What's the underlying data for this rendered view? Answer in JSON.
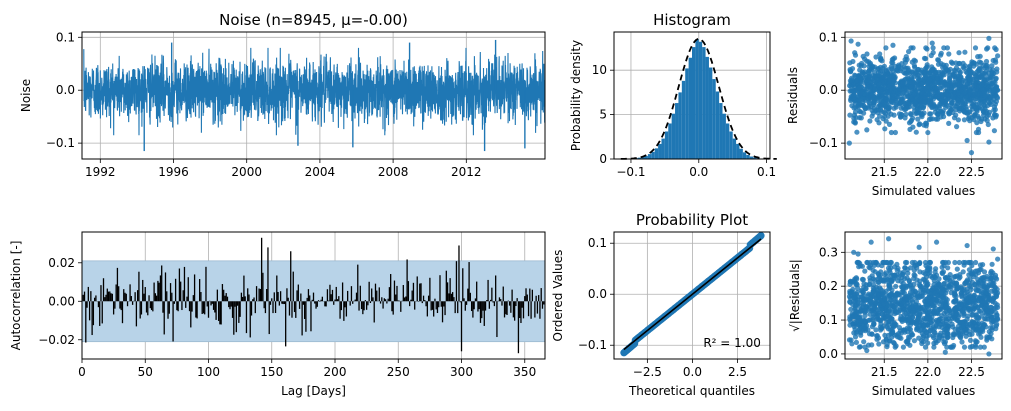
{
  "colors": {
    "series": "#1f77b4",
    "band": "#b8d3e8",
    "grid": "#b0b0b0",
    "black": "#000000"
  },
  "chart_data": [
    {
      "id": "noise",
      "type": "line",
      "title": "Noise (n=8945, μ=-0.00)",
      "xlabel": "",
      "ylabel": "Noise",
      "xlim": [
        1991.0,
        2016.3
      ],
      "ylim": [
        -0.13,
        0.11
      ],
      "xticks": [
        1992,
        1996,
        2000,
        2004,
        2008,
        2012
      ],
      "xticklabels": [
        "1992",
        "1996",
        "2000",
        "2004",
        "2008",
        "2012"
      ],
      "yticks": [
        -0.1,
        0.0,
        0.1
      ],
      "yticklabels": [
        "−0.1",
        "0.0",
        "0.1"
      ],
      "n": 8945,
      "mean": -0.0,
      "typical_range": [
        -0.075,
        0.075
      ],
      "extremes": [
        {
          "x": 1994.4,
          "y": -0.115
        },
        {
          "x": 2013.0,
          "y": -0.115
        },
        {
          "x": 2015.2,
          "y": -0.11
        },
        {
          "x": 2002.8,
          "y": -0.105
        },
        {
          "x": 2005.8,
          "y": -0.108
        },
        {
          "x": 1995.9,
          "y": 0.09
        },
        {
          "x": 2008.9,
          "y": 0.09
        },
        {
          "x": 2013.6,
          "y": 0.095
        }
      ],
      "grid": true
    },
    {
      "id": "histogram",
      "type": "bar",
      "title": "Histogram",
      "xlabel": "",
      "ylabel": "Probability density",
      "xlim": [
        -0.125,
        0.105
      ],
      "ylim": [
        0,
        14.3
      ],
      "xticks": [
        -0.1,
        0.0,
        0.1
      ],
      "xticklabels": [
        "−0.1",
        "0.0",
        "0.1"
      ],
      "yticks": [
        0,
        5,
        10
      ],
      "yticklabels": [
        "0",
        "5",
        "10"
      ],
      "bins": [
        -0.1125,
        -0.1075,
        -0.1025,
        -0.0975,
        -0.0925,
        -0.0875,
        -0.0825,
        -0.0775,
        -0.0725,
        -0.0675,
        -0.0625,
        -0.0575,
        -0.0525,
        -0.0475,
        -0.0425,
        -0.0375,
        -0.0325,
        -0.0275,
        -0.0225,
        -0.0175,
        -0.0125,
        -0.0075,
        -0.0025,
        0.0025,
        0.0075,
        0.0125,
        0.0175,
        0.0225,
        0.0275,
        0.0325,
        0.0375,
        0.0425,
        0.0475,
        0.0525,
        0.0575,
        0.0625,
        0.0675,
        0.0725,
        0.0775,
        0.0825,
        0.0875,
        0.0925,
        0.0975
      ],
      "bin_width": 0.005,
      "density": [
        0.02,
        0.03,
        0.04,
        0.07,
        0.1,
        0.15,
        0.22,
        0.35,
        0.55,
        0.8,
        1.2,
        1.7,
        2.3,
        3.1,
        4.0,
        5.1,
        6.3,
        7.5,
        8.8,
        10.2,
        11.4,
        12.6,
        13.5,
        13.2,
        12.6,
        11.5,
        10.3,
        9.0,
        7.6,
        6.3,
        5.1,
        4.0,
        3.1,
        2.3,
        1.7,
        1.15,
        0.75,
        0.45,
        0.28,
        0.17,
        0.1,
        0.05,
        0.03
      ],
      "normal_fit": {
        "mean": 0.0,
        "std": 0.0295,
        "style": "dashed"
      },
      "grid": true
    },
    {
      "id": "residuals-vs-sim",
      "type": "scatter",
      "title": "",
      "xlabel": "Simulated values",
      "ylabel": "Residuals",
      "xlim": [
        21.05,
        22.85
      ],
      "ylim": [
        -0.13,
        0.11
      ],
      "xticks": [
        21.5,
        22.0,
        22.5
      ],
      "xticklabels": [
        "21.5",
        "22.0",
        "22.5"
      ],
      "yticks": [
        -0.1,
        0.0,
        0.1
      ],
      "yticklabels": [
        "−0.1",
        "0.0",
        "0.1"
      ],
      "points": [
        {
          "x": 21.12,
          "y": 0.093
        },
        {
          "x": 21.2,
          "y": 0.087
        },
        {
          "x": 22.7,
          "y": 0.098
        },
        {
          "x": 22.05,
          "y": 0.089
        },
        {
          "x": 21.6,
          "y": 0.085
        },
        {
          "x": 22.8,
          "y": 0.065
        },
        {
          "x": 21.15,
          "y": -0.06
        },
        {
          "x": 21.1,
          "y": -0.1
        },
        {
          "x": 21.3,
          "y": -0.075
        },
        {
          "x": 22.0,
          "y": -0.08
        },
        {
          "x": 22.45,
          "y": -0.095
        },
        {
          "x": 22.7,
          "y": -0.098
        },
        {
          "x": 22.5,
          "y": -0.118
        },
        {
          "x": 21.9,
          "y": -0.065
        },
        {
          "x": 22.8,
          "y": 0.0
        }
      ],
      "cloud_range": {
        "x": [
          21.1,
          22.8
        ],
        "y": [
          -0.07,
          0.07
        ]
      },
      "grid": true
    },
    {
      "id": "autocorrelation",
      "type": "bar",
      "title": "",
      "xlabel": "Lag [Days]",
      "ylabel": "Autocorrelation [-]",
      "xlim": [
        0,
        366
      ],
      "ylim": [
        -0.03,
        0.036
      ],
      "xticks": [
        0,
        50,
        100,
        150,
        200,
        250,
        300,
        350
      ],
      "xticklabels": [
        "0",
        "50",
        "100",
        "150",
        "200",
        "250",
        "300",
        "350"
      ],
      "yticks": [
        -0.02,
        0.0,
        0.02
      ],
      "yticklabels": [
        "−0.02",
        "0.00",
        "0.02"
      ],
      "confidence_band": [
        -0.021,
        0.021
      ],
      "notable_lags": [
        {
          "lag": 142,
          "value": 0.033
        },
        {
          "lag": 147,
          "value": 0.028
        },
        {
          "lag": 165,
          "value": 0.026
        },
        {
          "lag": 298,
          "value": 0.029
        },
        {
          "lag": 300,
          "value": -0.026
        },
        {
          "lag": 345,
          "value": -0.027
        }
      ],
      "grid": true
    },
    {
      "id": "probability-plot",
      "type": "scatter",
      "title": "Probability Plot",
      "xlabel": "Theoretical quantiles",
      "ylabel": "Ordered Values",
      "xlim": [
        -4.35,
        4.3
      ],
      "ylim": [
        -0.127,
        0.122
      ],
      "xticks": [
        -2.5,
        0.0,
        2.5
      ],
      "xticklabels": [
        "−2.5",
        "0.0",
        "2.5"
      ],
      "yticks": [
        -0.1,
        0.0,
        0.1
      ],
      "yticklabels": [
        "−0.1",
        "0.0",
        "0.1"
      ],
      "theoretical_range": [
        -3.8,
        3.8
      ],
      "fit_line": {
        "slope": 0.0285,
        "intercept": 0.0
      },
      "annotation": "R² = 1.00",
      "grid": true
    },
    {
      "id": "scale-location",
      "type": "scatter",
      "title": "",
      "xlabel": "Simulated values",
      "ylabel": "√|Residuals|",
      "xlim": [
        21.05,
        22.85
      ],
      "ylim": [
        -0.015,
        0.36
      ],
      "xticks": [
        21.5,
        22.0,
        22.5
      ],
      "xticklabels": [
        "21.5",
        "22.0",
        "22.5"
      ],
      "yticks": [
        0.0,
        0.1,
        0.2,
        0.3
      ],
      "yticklabels": [
        "0.0",
        "0.1",
        "0.2",
        "0.3"
      ],
      "points": [
        {
          "x": 21.55,
          "y": 0.34
        },
        {
          "x": 21.35,
          "y": 0.33
        },
        {
          "x": 22.1,
          "y": 0.33
        },
        {
          "x": 22.45,
          "y": 0.32
        },
        {
          "x": 21.9,
          "y": 0.315
        },
        {
          "x": 22.75,
          "y": 0.31
        },
        {
          "x": 21.15,
          "y": 0.3
        },
        {
          "x": 22.8,
          "y": 0.28
        },
        {
          "x": 21.2,
          "y": 0.295
        },
        {
          "x": 22.7,
          "y": 0.0
        },
        {
          "x": 21.3,
          "y": 0.01
        },
        {
          "x": 22.2,
          "y": 0.005
        }
      ],
      "cloud_range": {
        "x": [
          21.1,
          22.8
        ],
        "y": [
          0.02,
          0.27
        ]
      },
      "grid": true
    }
  ]
}
